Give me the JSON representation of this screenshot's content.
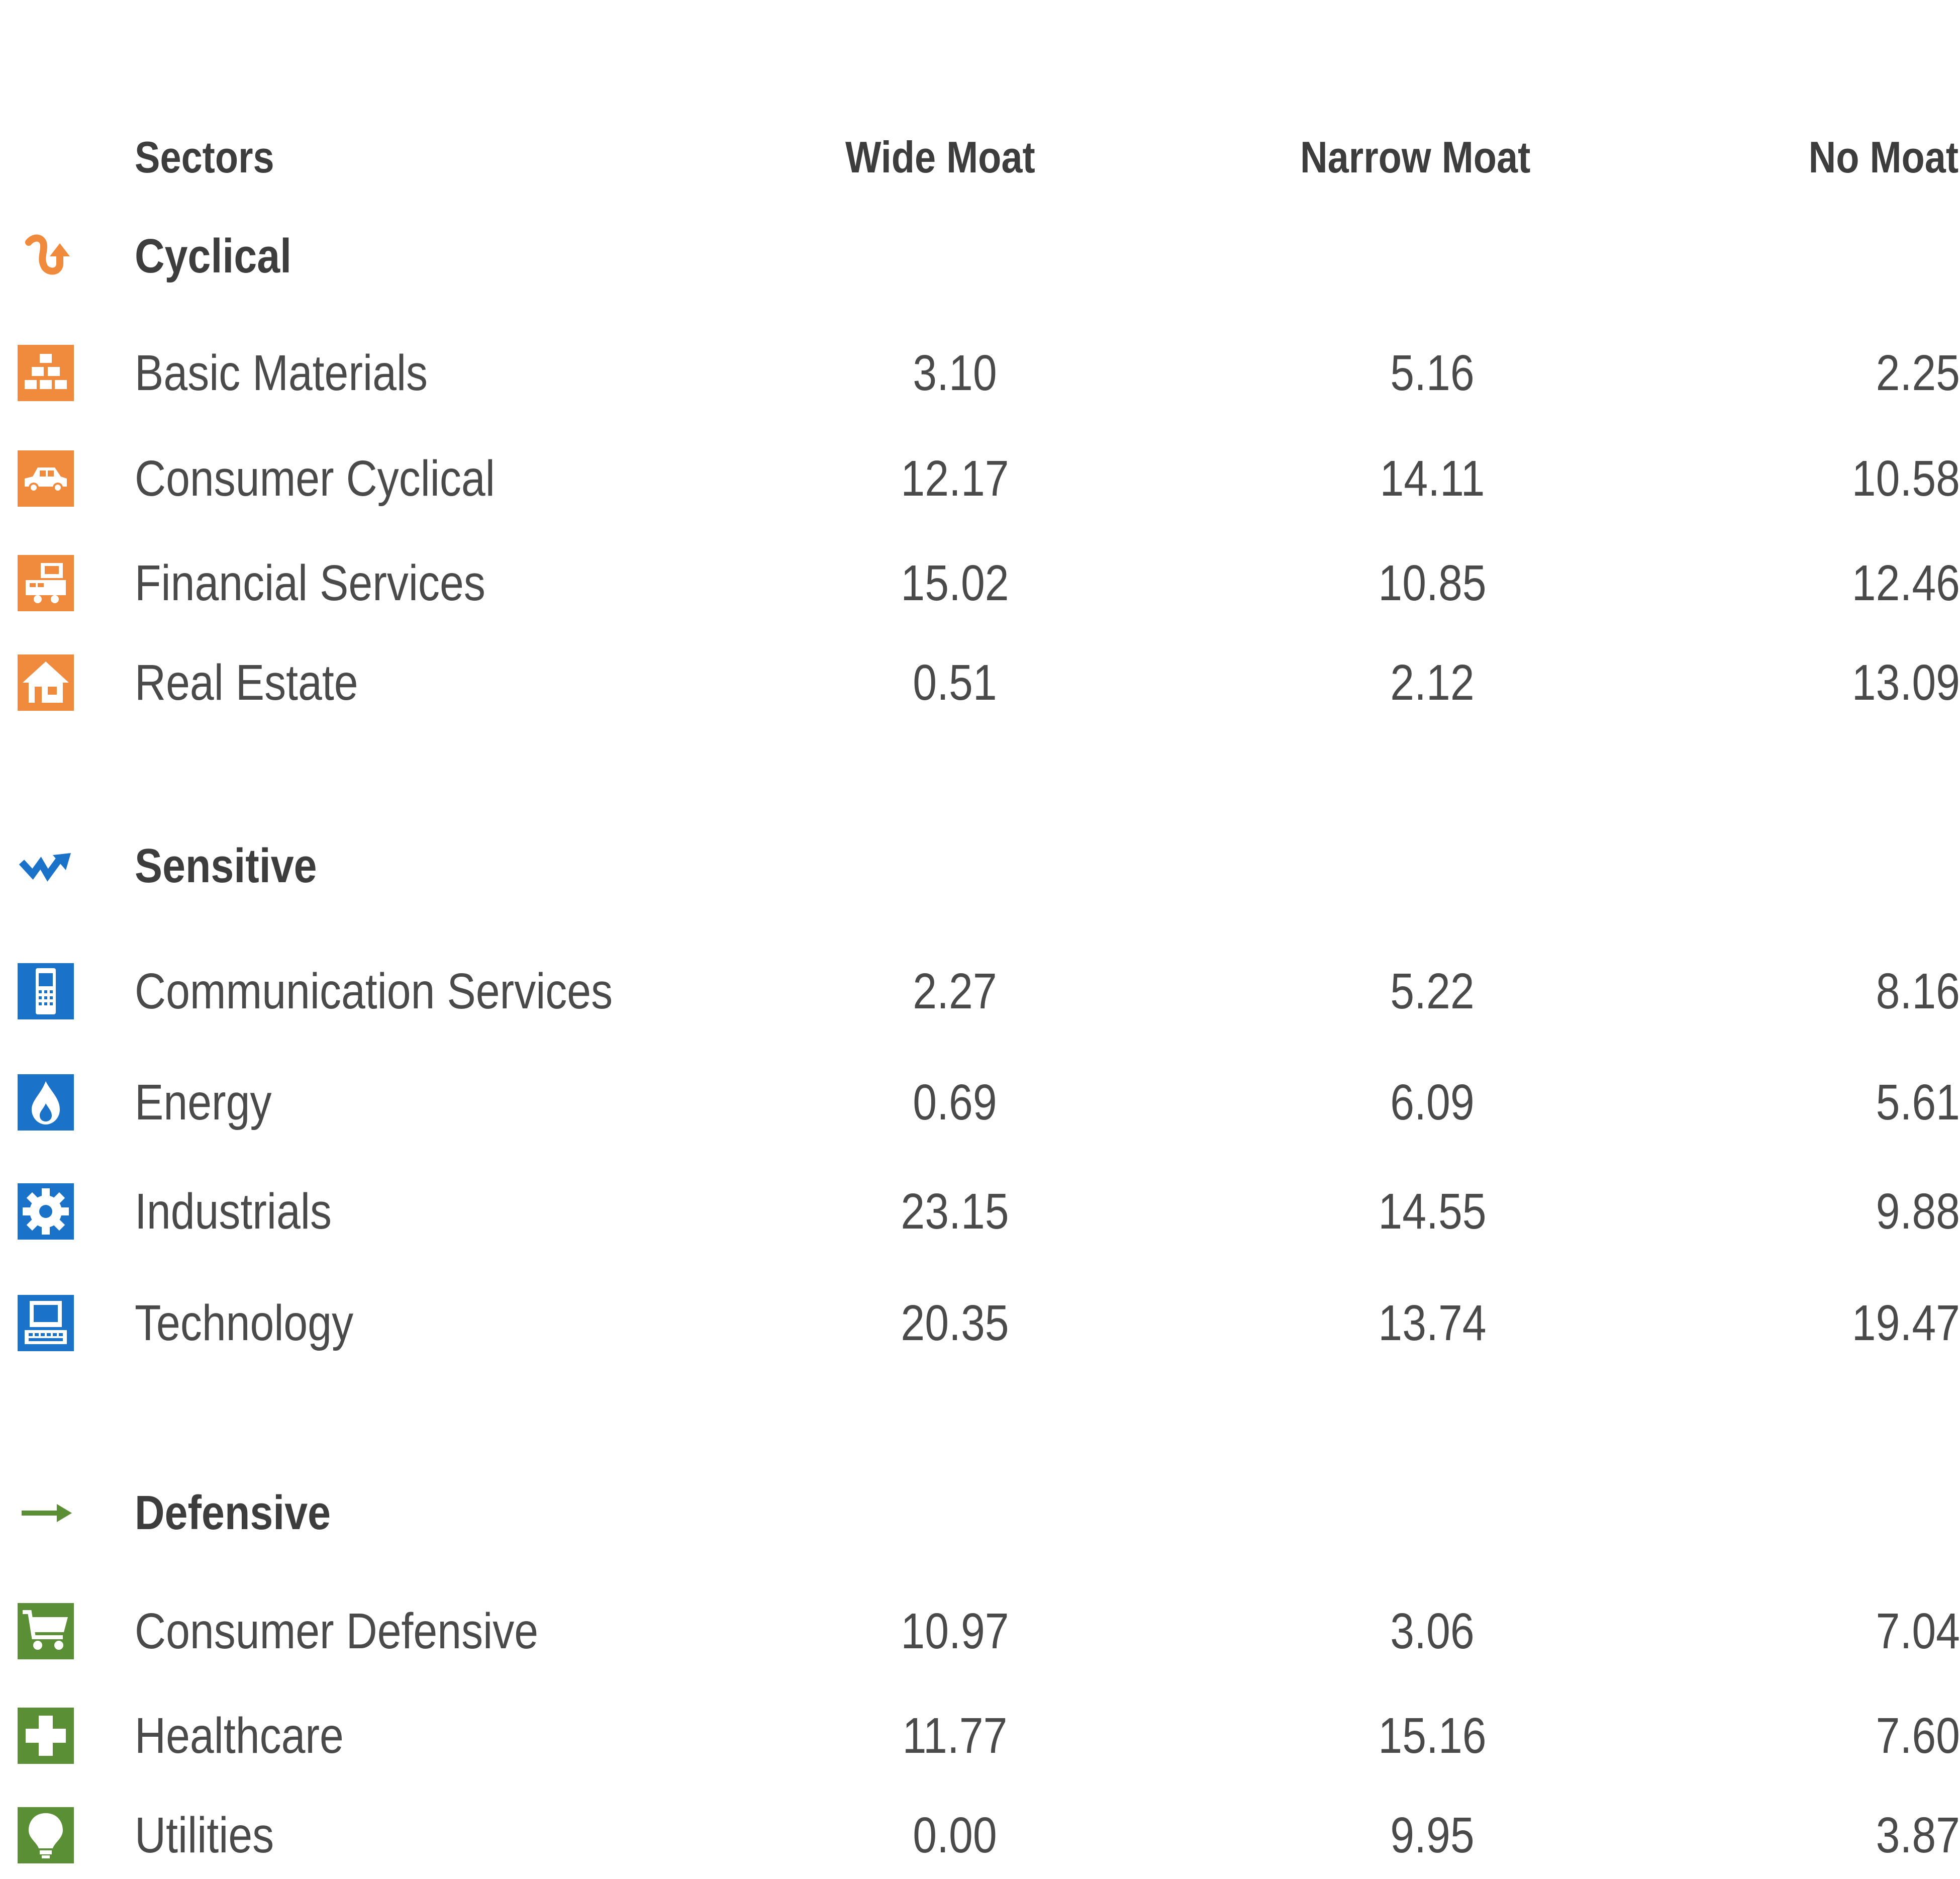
{
  "header": {
    "sectors": "Sectors",
    "wide": "Wide Moat",
    "narrow": "Narrow Moat",
    "no": "No Moat"
  },
  "colors": {
    "cyclical": "#f08a3c",
    "sensitive": "#1a73c8",
    "defensive": "#5b8f35"
  },
  "groups": [
    {
      "label": "Cyclical",
      "icon": "cyclical-arrow-icon",
      "rows": [
        {
          "name": "Basic Materials",
          "icon": "gold-bars-icon",
          "wide": "3.10",
          "narrow": "5.16",
          "no": "2.25"
        },
        {
          "name": "Consumer Cyclical",
          "icon": "car-icon",
          "wide": "12.17",
          "narrow": "14.11",
          "no": "10.58"
        },
        {
          "name": "Financial Services",
          "icon": "cash-register-icon",
          "wide": "15.02",
          "narrow": "10.85",
          "no": "12.46"
        },
        {
          "name": "Real Estate",
          "icon": "house-icon",
          "wide": "0.51",
          "narrow": "2.12",
          "no": "13.09"
        }
      ]
    },
    {
      "label": "Sensitive",
      "icon": "sensitive-zigzag-icon",
      "rows": [
        {
          "name": "Communication Services",
          "icon": "phone-icon",
          "wide": "2.27",
          "narrow": "5.22",
          "no": "8.16"
        },
        {
          "name": "Energy",
          "icon": "flame-icon",
          "wide": "0.69",
          "narrow": "6.09",
          "no": "5.61"
        },
        {
          "name": "Industrials",
          "icon": "gear-icon",
          "wide": "23.15",
          "narrow": "14.55",
          "no": "9.88"
        },
        {
          "name": "Technology",
          "icon": "computer-icon",
          "wide": "20.35",
          "narrow": "13.74",
          "no": "19.47"
        }
      ]
    },
    {
      "label": "Defensive",
      "icon": "defensive-arrow-icon",
      "rows": [
        {
          "name": "Consumer Defensive",
          "icon": "shopping-cart-icon",
          "wide": "10.97",
          "narrow": "3.06",
          "no": "7.04"
        },
        {
          "name": "Healthcare",
          "icon": "medical-cross-icon",
          "wide": "11.77",
          "narrow": "15.16",
          "no": "7.60"
        },
        {
          "name": "Utilities",
          "icon": "light-bulb-icon",
          "wide": "0.00",
          "narrow": "9.95",
          "no": "3.87"
        }
      ]
    }
  ]
}
